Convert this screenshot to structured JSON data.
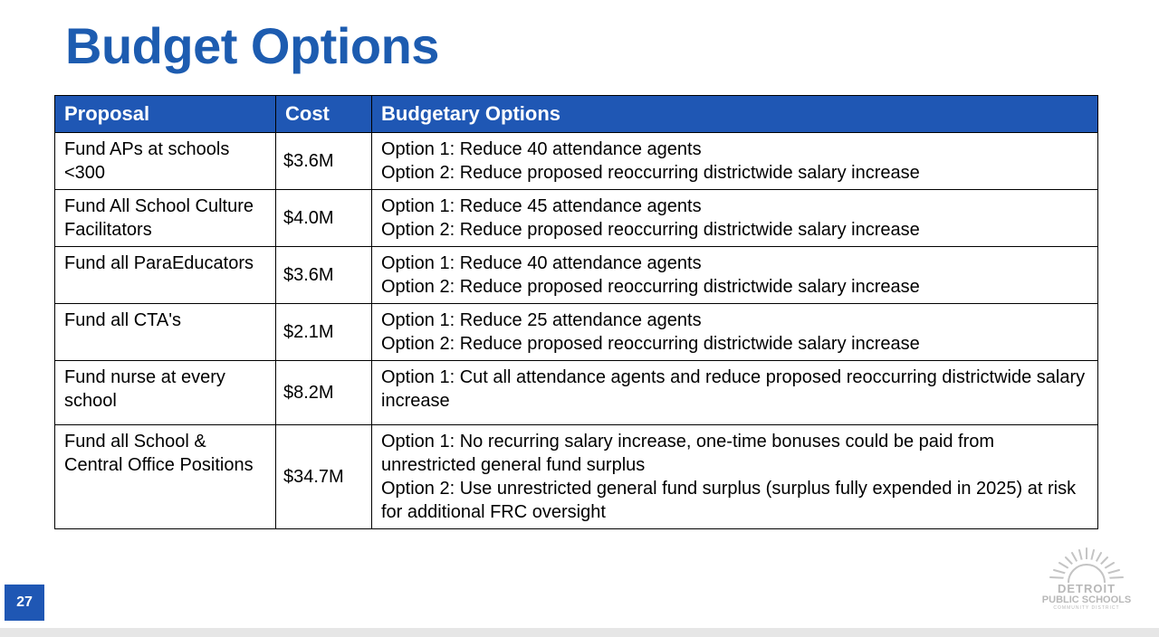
{
  "slide": {
    "title": "Budget Options",
    "page_number": "27"
  },
  "table": {
    "headers": [
      "Proposal",
      "Cost",
      "Budgetary Options"
    ],
    "rows": [
      {
        "proposal": "Fund APs at schools <300",
        "cost": "$3.6M",
        "options": [
          "Option 1: Reduce 40 attendance agents",
          "Option 2: Reduce proposed reoccurring districtwide salary increase"
        ]
      },
      {
        "proposal": "Fund All School Culture Facilitators",
        "cost": "$4.0M",
        "options": [
          "Option 1: Reduce 45 attendance agents",
          "Option 2: Reduce proposed reoccurring districtwide salary increase"
        ]
      },
      {
        "proposal": "Fund all ParaEducators",
        "cost": "$3.6M",
        "options": [
          "Option 1: Reduce 40 attendance agents",
          "Option 2: Reduce proposed reoccurring districtwide salary increase"
        ]
      },
      {
        "proposal": "Fund all CTA's",
        "cost": "$2.1M",
        "options": [
          "Option 1: Reduce 25 attendance agents",
          "Option 2: Reduce proposed reoccurring districtwide salary increase"
        ]
      },
      {
        "proposal": "Fund nurse at every school",
        "cost": "$8.2M",
        "options": [
          "Option 1: Cut all attendance agents and reduce proposed reoccurring districtwide salary increase"
        ]
      },
      {
        "proposal": "Fund all School & Central Office Positions",
        "cost": "$34.7M",
        "options": [
          "Option 1: No recurring salary increase, one-time bonuses could be paid from unrestricted general fund surplus",
          "Option 2: Use unrestricted general fund surplus (surplus fully expended in 2025) at risk for additional FRC oversight"
        ]
      }
    ]
  },
  "logo": {
    "line1": "DETROIT",
    "line2": "PUBLIC SCHOOLS",
    "line3": "COMMUNITY DISTRICT"
  },
  "colors": {
    "title": "#1d5cb0",
    "header_bg": "#1f57b4"
  }
}
